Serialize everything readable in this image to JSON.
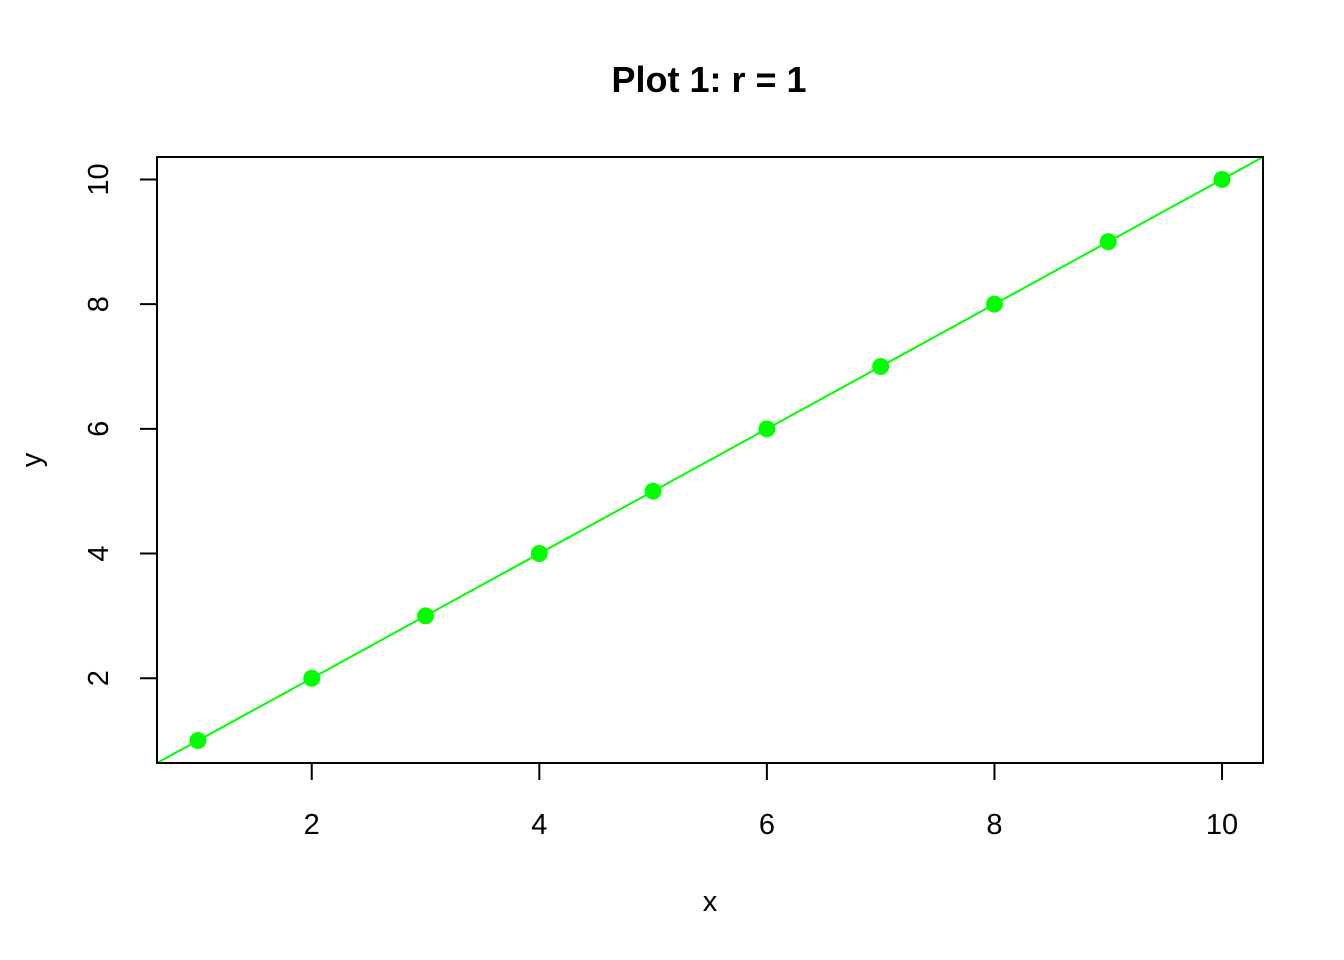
{
  "chart_data": {
    "type": "scatter",
    "title": "Plot 1: r = 1",
    "xlabel": "x",
    "ylabel": "y",
    "xlim": [
      0.64,
      10.36
    ],
    "ylim": [
      0.64,
      10.36
    ],
    "x_ticks": [
      2,
      4,
      6,
      8,
      10
    ],
    "y_ticks": [
      2,
      4,
      6,
      8,
      10
    ],
    "x_tick_labels": [
      "2",
      "4",
      "6",
      "8",
      "10"
    ],
    "y_tick_labels": [
      "2",
      "4",
      "6",
      "8",
      "10"
    ],
    "series": [
      {
        "x": [
          1,
          2,
          3,
          4,
          5,
          6,
          7,
          8,
          9,
          10
        ],
        "y": [
          1,
          2,
          3,
          4,
          5,
          6,
          7,
          8,
          9,
          10
        ],
        "color": "#00ff00",
        "marker": "filled-circle"
      }
    ],
    "fit_line": {
      "intercept": 0,
      "slope": 1,
      "color": "#00ff00"
    },
    "grid": false,
    "legend": "none"
  }
}
